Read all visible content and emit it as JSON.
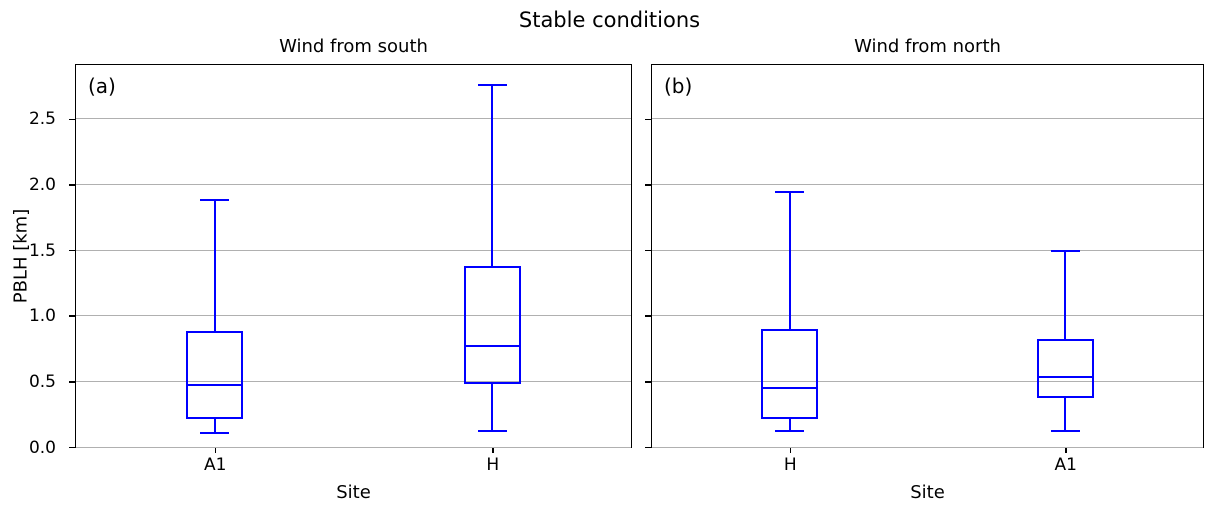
{
  "figure": {
    "suptitle": "Stable conditions",
    "background_color": "#ffffff"
  },
  "chart_data": {
    "type": "boxplot",
    "suptitle": "Stable conditions",
    "ylim": [
      0,
      2.91
    ],
    "ytick_values": [
      0,
      0.5,
      1.0,
      1.5,
      2.0,
      2.5
    ],
    "ytick_labels": [
      "0.0",
      "0.5",
      "1.0",
      "1.5",
      "2.0",
      "2.5"
    ],
    "grid": true,
    "legend": "none",
    "colors": {
      "box": "#0000ff",
      "grid": "#b0b0b0",
      "axis": "#000000",
      "text": "#000000"
    },
    "panels": [
      {
        "panel_label": "(a)",
        "title": "Wind from south",
        "xlabel": "Site",
        "ylabel": "PBLH [km]",
        "show_ytick_labels": true,
        "categories": [
          "A1",
          "H"
        ],
        "boxes": [
          {
            "site": "A1",
            "whisker_low": 0.11,
            "q1": 0.21,
            "median": 0.47,
            "q3": 0.88,
            "whisker_high": 1.88
          },
          {
            "site": "H",
            "whisker_low": 0.12,
            "q1": 0.48,
            "median": 0.77,
            "q3": 1.38,
            "whisker_high": 2.76
          }
        ]
      },
      {
        "panel_label": "(b)",
        "title": "Wind from north",
        "xlabel": "Site",
        "ylabel": "",
        "show_ytick_labels": false,
        "categories": [
          "H",
          "A1"
        ],
        "boxes": [
          {
            "site": "H",
            "whisker_low": 0.12,
            "q1": 0.21,
            "median": 0.45,
            "q3": 0.9,
            "whisker_high": 1.94
          },
          {
            "site": "A1",
            "whisker_low": 0.12,
            "q1": 0.37,
            "median": 0.53,
            "q3": 0.82,
            "whisker_high": 1.49
          }
        ]
      }
    ]
  }
}
